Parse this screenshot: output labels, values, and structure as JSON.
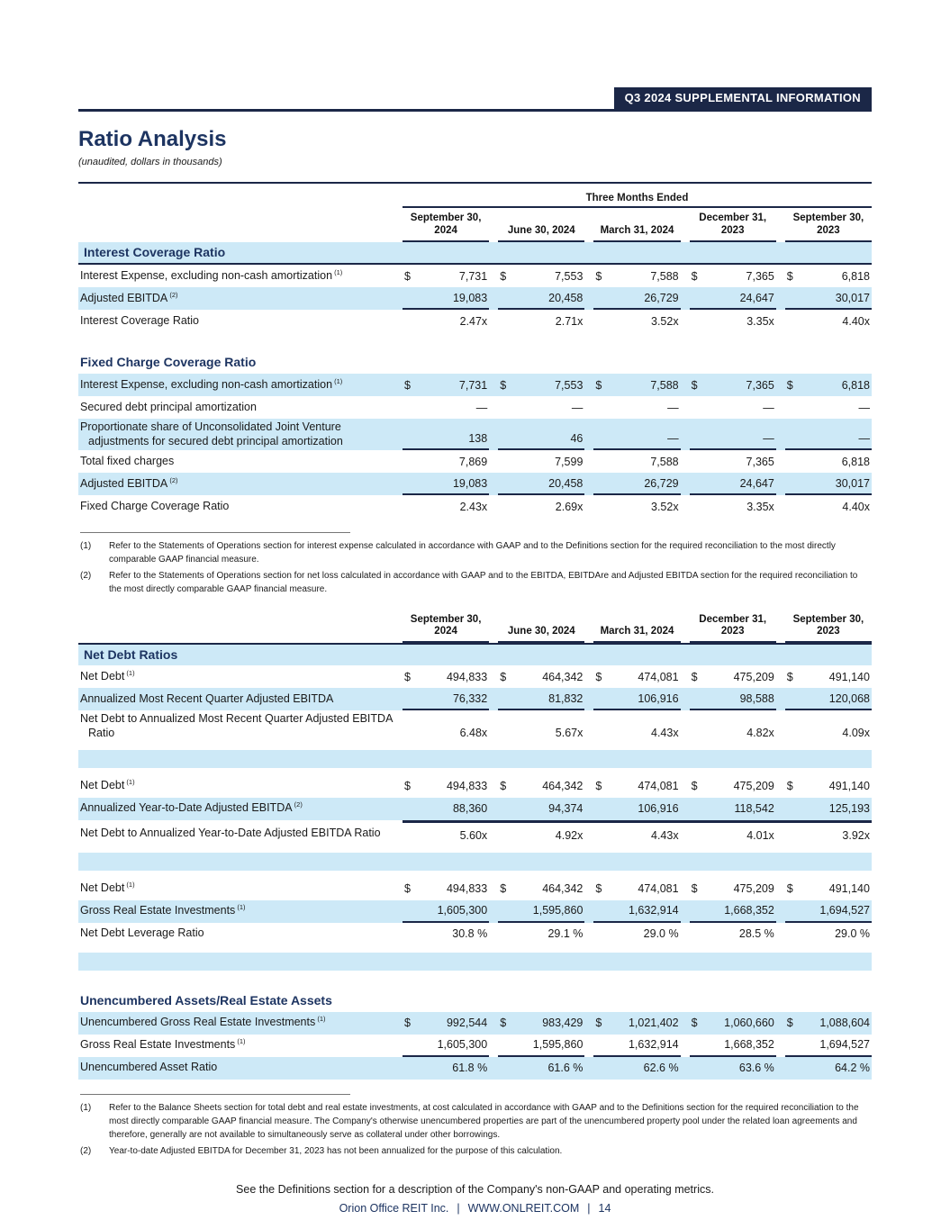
{
  "colors": {
    "navy": "#1b2747",
    "heading": "#1d3461",
    "row_blue": "#cde9f7"
  },
  "header": {
    "banner": "Q3 2024 SUPPLEMENTAL INFORMATION",
    "title": "Ratio Analysis",
    "subtitle": "(unaudited, dollars in thousands)"
  },
  "columns": [
    "September 30,|2024",
    "June 30, 2024",
    "March 31, 2024",
    "December 31,|2023",
    "September 30,|2023"
  ],
  "table1": {
    "period_header": "Three Months Ended",
    "rows": [
      {
        "type": "band",
        "label": "Interest Coverage Ratio",
        "border": "bottom"
      },
      {
        "type": "row",
        "bg": "white",
        "label": "Interest Expense, excluding non-cash amortization",
        "sup": "(1)",
        "dollar": true,
        "values": [
          "7,731",
          "7,553",
          "7,588",
          "7,365",
          "6,818"
        ]
      },
      {
        "type": "row",
        "bg": "blue",
        "label": "Adjusted EBITDA",
        "sup": "(2)",
        "values": [
          "19,083",
          "20,458",
          "26,729",
          "24,647",
          "30,017"
        ],
        "underline": "segments"
      },
      {
        "type": "row",
        "bg": "white",
        "label": "Interest Coverage Ratio",
        "values": [
          "2.47x",
          "2.71x",
          "3.52x",
          "3.35x",
          "4.40x"
        ]
      },
      {
        "type": "heading",
        "label": "Fixed Charge Coverage Ratio"
      },
      {
        "type": "row",
        "bg": "blue",
        "label": "Interest Expense, excluding non-cash amortization",
        "sup": "(1)",
        "dollar": true,
        "values": [
          "7,731",
          "7,553",
          "7,588",
          "7,365",
          "6,818"
        ]
      },
      {
        "type": "row",
        "bg": "white",
        "label": "Secured debt principal amortization",
        "values": [
          "—",
          "—",
          "—",
          "—",
          "—"
        ]
      },
      {
        "type": "row",
        "bg": "blue",
        "twoline": true,
        "label": "Proportionate share of Unconsolidated Joint Venture adjustments for secured debt principal amortization",
        "values": [
          "138",
          "46",
          "—",
          "—",
          "—"
        ],
        "underline": "segments"
      },
      {
        "type": "row",
        "bg": "white",
        "label": "Total fixed charges",
        "values": [
          "7,869",
          "7,599",
          "7,588",
          "7,365",
          "6,818"
        ]
      },
      {
        "type": "row",
        "bg": "blue",
        "label": "Adjusted EBITDA",
        "sup": "(2)",
        "values": [
          "19,083",
          "20,458",
          "26,729",
          "24,647",
          "30,017"
        ],
        "underline": "segments"
      },
      {
        "type": "row",
        "bg": "white",
        "label": "Fixed Charge Coverage Ratio",
        "values": [
          "2.43x",
          "2.69x",
          "3.52x",
          "3.35x",
          "4.40x"
        ]
      }
    ]
  },
  "table1_footnotes": [
    {
      "num": "(1)",
      "text": "Refer to the Statements of Operations section for interest expense calculated in accordance with GAAP and to the Definitions section for the required reconciliation to the most directly comparable GAAP financial measure."
    },
    {
      "num": "(2)",
      "text": "Refer to the Statements of Operations section for net loss calculated in accordance with GAAP and to the EBITDA, EBITDAre and Adjusted EBITDA section for the required reconciliation to the most directly comparable GAAP financial measure."
    }
  ],
  "table2": {
    "rows": [
      {
        "type": "band",
        "label": "Net Debt Ratios",
        "border": "top"
      },
      {
        "type": "row",
        "bg": "white",
        "label": "Net Debt",
        "sup": "(1)",
        "dollar": true,
        "values": [
          "494,833",
          "464,342",
          "474,081",
          "475,209",
          "491,140"
        ]
      },
      {
        "type": "row",
        "bg": "blue",
        "label": "Annualized Most Recent Quarter Adjusted EBITDA",
        "values": [
          "76,332",
          "81,832",
          "106,916",
          "98,588",
          "120,068"
        ],
        "underline": "segments"
      },
      {
        "type": "row",
        "bg": "white",
        "twoline": true,
        "label": "Net Debt to Annualized Most Recent Quarter Adjusted EBITDA Ratio",
        "values": [
          "6.48x",
          "5.67x",
          "4.43x",
          "4.82x",
          "4.09x"
        ]
      },
      {
        "type": "spacer"
      },
      {
        "type": "row",
        "bg": "white",
        "label": "Net Debt",
        "sup": "(1)",
        "dollar": true,
        "values": [
          "494,833",
          "464,342",
          "474,081",
          "475,209",
          "491,140"
        ]
      },
      {
        "type": "row",
        "bg": "blue",
        "label": "Annualized Year-to-Date Adjusted EBITDA",
        "sup": "(2)",
        "values": [
          "88,360",
          "94,374",
          "106,916",
          "118,542",
          "125,193"
        ],
        "underline": "full"
      },
      {
        "type": "row",
        "bg": "white",
        "twoline": true,
        "label": "Net Debt to Annualized Year-to-Date Adjusted EBITDA Ratio",
        "values": [
          "5.60x",
          "4.92x",
          "4.43x",
          "4.01x",
          "3.92x"
        ]
      },
      {
        "type": "spacer"
      },
      {
        "type": "row",
        "bg": "white",
        "label": "Net Debt",
        "sup": "(1)",
        "dollar": true,
        "values": [
          "494,833",
          "464,342",
          "474,081",
          "475,209",
          "491,140"
        ]
      },
      {
        "type": "row",
        "bg": "blue",
        "label": "Gross Real Estate Investments",
        "sup": "(1)",
        "values": [
          "1,605,300",
          "1,595,860",
          "1,632,914",
          "1,668,352",
          "1,694,527"
        ],
        "underline": "segments"
      },
      {
        "type": "row",
        "bg": "white",
        "label": "Net Debt Leverage Ratio",
        "values": [
          "30.8 %",
          "29.1 %",
          "29.0 %",
          "28.5 %",
          "29.0 %"
        ]
      },
      {
        "type": "spacer"
      },
      {
        "type": "heading",
        "label": "Unencumbered Assets/Real Estate Assets"
      },
      {
        "type": "row",
        "bg": "blue",
        "label": "Unencumbered Gross Real Estate Investments",
        "sup": "(1)",
        "dollar": true,
        "values": [
          "992,544",
          "983,429",
          "1,021,402",
          "1,060,660",
          "1,088,604"
        ]
      },
      {
        "type": "row",
        "bg": "white",
        "label": "Gross Real Estate Investments",
        "sup": "(1)",
        "values": [
          "1,605,300",
          "1,595,860",
          "1,632,914",
          "1,668,352",
          "1,694,527"
        ],
        "underline": "segments"
      },
      {
        "type": "row",
        "bg": "blue",
        "label": "Unencumbered Asset Ratio",
        "values": [
          "61.8 %",
          "61.6 %",
          "62.6 %",
          "63.6 %",
          "64.2 %"
        ]
      }
    ]
  },
  "table2_footnotes": [
    {
      "num": "(1)",
      "text": "Refer to the Balance Sheets section for total debt and real estate investments, at cost calculated in accordance with GAAP and to the Definitions section for the required reconciliation to the most directly comparable GAAP financial measure. The Company's otherwise unencumbered properties are part of the unencumbered property pool under the related loan agreements and therefore, generally are not available to simultaneously serve as collateral under other borrowings."
    },
    {
      "num": "(2)",
      "text": "Year-to-date Adjusted EBITDA for December 31, 2023 has not been annualized for the purpose of this calculation."
    }
  ],
  "closing_note": "See the Definitions section for a description of the Company's non-GAAP and operating metrics.",
  "footer": {
    "company": "Orion Office REIT Inc.",
    "separator": "|",
    "url": "WWW.ONLREIT.COM",
    "page_number": "14"
  }
}
